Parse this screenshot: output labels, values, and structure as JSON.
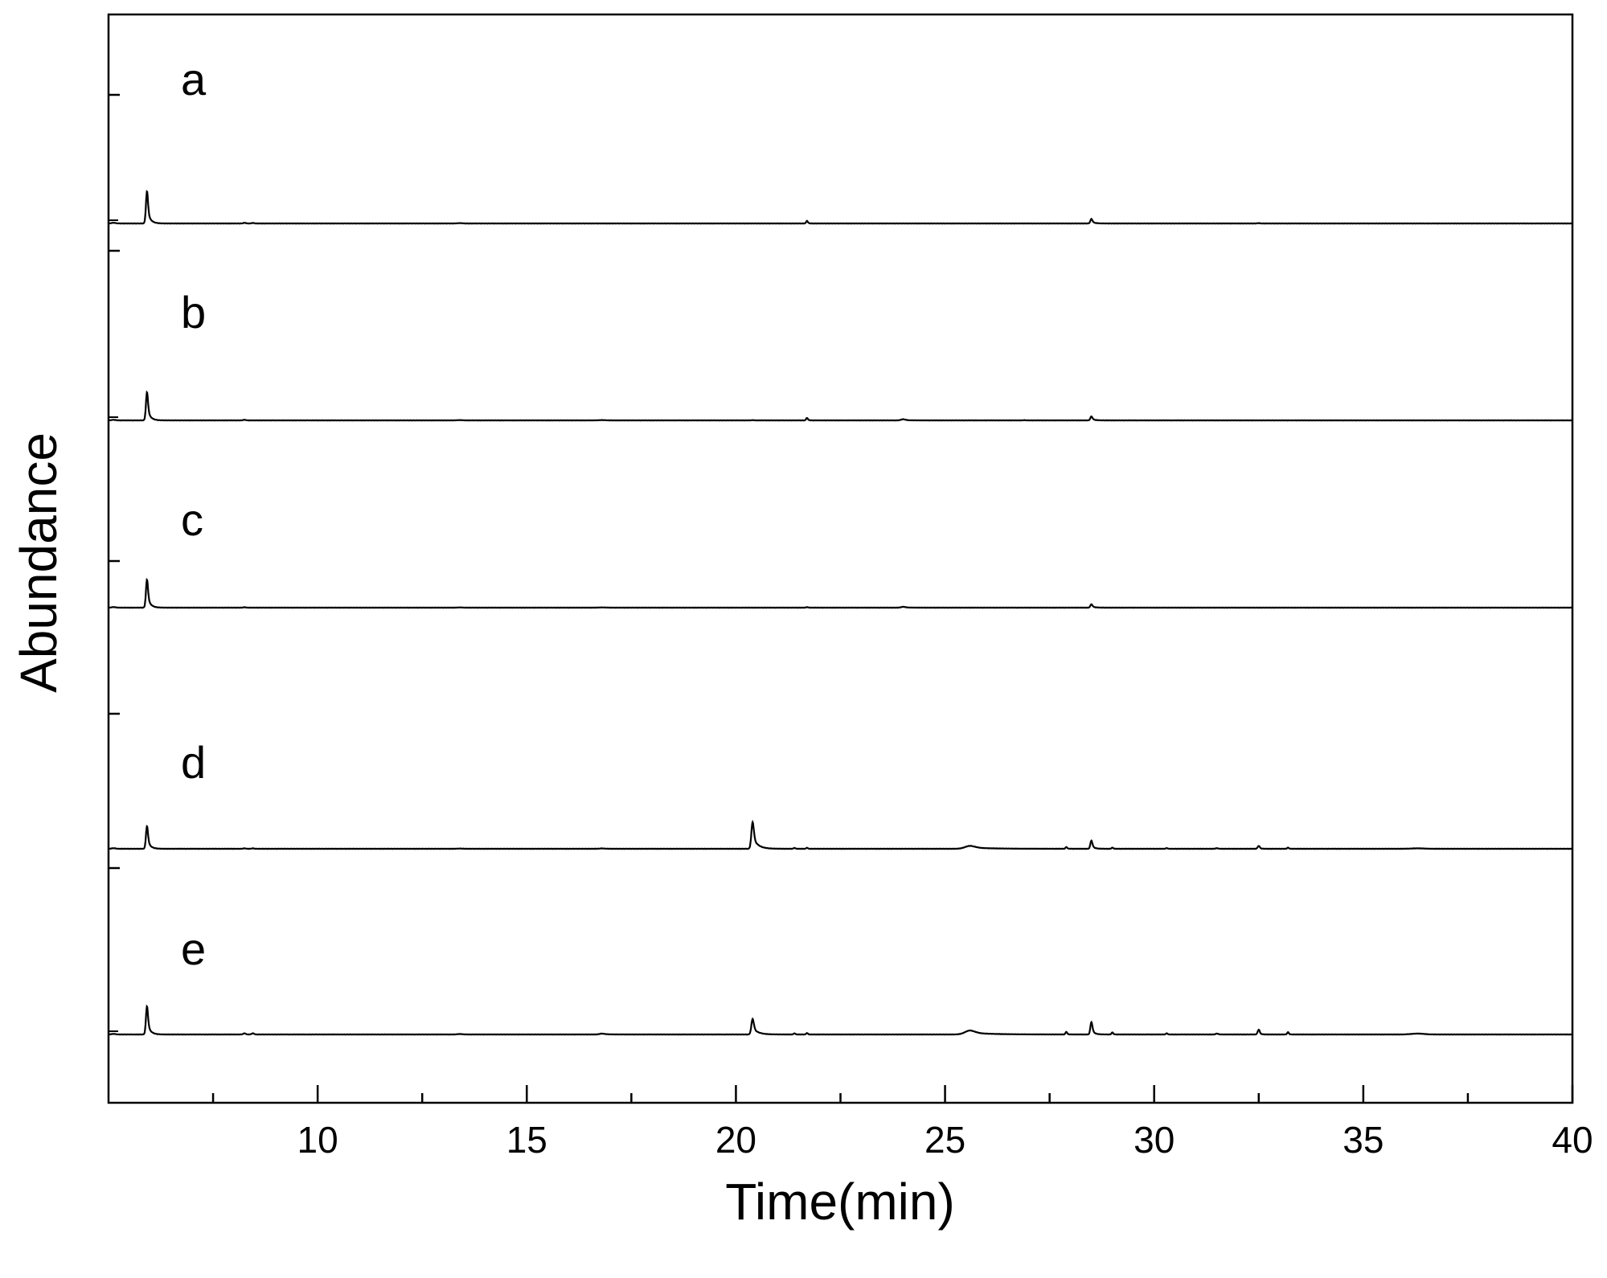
{
  "chart_data": {
    "type": "line",
    "title": "",
    "xlabel": "Time(min)",
    "ylabel": "Abundance",
    "xlim": [
      5,
      40
    ],
    "x_ticks": [
      10,
      15,
      20,
      25,
      30,
      35,
      40
    ],
    "x_minor_ticks": [
      7.5,
      12.5,
      17.5,
      22.5,
      27.5,
      32.5,
      37.5
    ],
    "y_ticks_shown": false,
    "grid": false,
    "legend": "none",
    "line_color": "#000000",
    "offset_units": "relative abundance, stacked traces",
    "series": [
      {
        "name": "a",
        "baseline": 0.05,
        "scale": 1.0,
        "peaks": [
          {
            "t": 5.12,
            "h": 0.02,
            "w": 0.05,
            "tail": 0.05
          },
          {
            "t": 5.92,
            "h": 1.0,
            "w": 0.025,
            "tail": 0.07
          },
          {
            "t": 8.25,
            "h": 0.02,
            "w": 0.03,
            "tail": 0.02
          },
          {
            "t": 8.45,
            "h": 0.015,
            "w": 0.03,
            "tail": 0.02
          },
          {
            "t": 13.4,
            "h": 0.01,
            "w": 0.06,
            "tail": 0.06
          },
          {
            "t": 21.7,
            "h": 0.08,
            "w": 0.02,
            "tail": 0.03
          },
          {
            "t": 28.5,
            "h": 0.14,
            "w": 0.025,
            "tail": 0.07
          },
          {
            "t": 32.5,
            "h": 0.01,
            "w": 0.03,
            "tail": 0.02
          }
        ]
      },
      {
        "name": "b",
        "baseline": 0.0,
        "scale": 1.0,
        "peaks": [
          {
            "t": 5.12,
            "h": 0.02,
            "w": 0.05,
            "tail": 0.05
          },
          {
            "t": 5.92,
            "h": 1.0,
            "w": 0.025,
            "tail": 0.07
          },
          {
            "t": 8.25,
            "h": 0.02,
            "w": 0.03,
            "tail": 0.02
          },
          {
            "t": 13.4,
            "h": 0.01,
            "w": 0.06,
            "tail": 0.06
          },
          {
            "t": 16.8,
            "h": 0.01,
            "w": 0.08,
            "tail": 0.08
          },
          {
            "t": 20.4,
            "h": 0.008,
            "w": 0.03,
            "tail": 0.02
          },
          {
            "t": 21.7,
            "h": 0.09,
            "w": 0.02,
            "tail": 0.03
          },
          {
            "t": 24.0,
            "h": 0.04,
            "w": 0.05,
            "tail": 0.12
          },
          {
            "t": 26.9,
            "h": 0.008,
            "w": 0.03,
            "tail": 0.02
          },
          {
            "t": 28.5,
            "h": 0.14,
            "w": 0.025,
            "tail": 0.07
          }
        ]
      },
      {
        "name": "c",
        "baseline": 0.0,
        "scale": 1.0,
        "peaks": [
          {
            "t": 5.12,
            "h": 0.02,
            "w": 0.05,
            "tail": 0.05
          },
          {
            "t": 5.92,
            "h": 1.0,
            "w": 0.025,
            "tail": 0.07
          },
          {
            "t": 8.25,
            "h": 0.015,
            "w": 0.03,
            "tail": 0.02
          },
          {
            "t": 13.4,
            "h": 0.008,
            "w": 0.06,
            "tail": 0.06
          },
          {
            "t": 16.8,
            "h": 0.008,
            "w": 0.08,
            "tail": 0.08
          },
          {
            "t": 21.7,
            "h": 0.02,
            "w": 0.02,
            "tail": 0.03
          },
          {
            "t": 24.0,
            "h": 0.03,
            "w": 0.05,
            "tail": 0.12
          },
          {
            "t": 28.5,
            "h": 0.12,
            "w": 0.025,
            "tail": 0.07
          }
        ]
      },
      {
        "name": "d",
        "baseline": 0.0,
        "scale": 1.0,
        "peaks": [
          {
            "t": 5.12,
            "h": 0.02,
            "w": 0.05,
            "tail": 0.05
          },
          {
            "t": 5.92,
            "h": 0.78,
            "w": 0.025,
            "tail": 0.07
          },
          {
            "t": 8.25,
            "h": 0.015,
            "w": 0.03,
            "tail": 0.02
          },
          {
            "t": 8.45,
            "h": 0.015,
            "w": 0.03,
            "tail": 0.02
          },
          {
            "t": 13.4,
            "h": 0.008,
            "w": 0.06,
            "tail": 0.06
          },
          {
            "t": 16.8,
            "h": 0.012,
            "w": 0.06,
            "tail": 0.1
          },
          {
            "t": 20.4,
            "h": 0.92,
            "w": 0.03,
            "tail": 0.12
          },
          {
            "t": 21.4,
            "h": 0.03,
            "w": 0.02,
            "tail": 0.02
          },
          {
            "t": 21.7,
            "h": 0.035,
            "w": 0.02,
            "tail": 0.02
          },
          {
            "t": 25.6,
            "h": 0.1,
            "w": 0.12,
            "tail": 0.5
          },
          {
            "t": 27.9,
            "h": 0.06,
            "w": 0.02,
            "tail": 0.03
          },
          {
            "t": 28.5,
            "h": 0.28,
            "w": 0.025,
            "tail": 0.06
          },
          {
            "t": 29.0,
            "h": 0.04,
            "w": 0.02,
            "tail": 0.03
          },
          {
            "t": 30.3,
            "h": 0.025,
            "w": 0.02,
            "tail": 0.02
          },
          {
            "t": 31.5,
            "h": 0.02,
            "w": 0.03,
            "tail": 0.03
          },
          {
            "t": 32.5,
            "h": 0.1,
            "w": 0.025,
            "tail": 0.04
          },
          {
            "t": 33.2,
            "h": 0.04,
            "w": 0.02,
            "tail": 0.03
          },
          {
            "t": 36.3,
            "h": 0.015,
            "w": 0.15,
            "tail": 0.15
          }
        ]
      },
      {
        "name": "e",
        "baseline": 0.0,
        "scale": 1.0,
        "peaks": [
          {
            "t": 5.12,
            "h": 0.02,
            "w": 0.05,
            "tail": 0.05
          },
          {
            "t": 5.92,
            "h": 1.0,
            "w": 0.025,
            "tail": 0.07
          },
          {
            "t": 8.25,
            "h": 0.04,
            "w": 0.03,
            "tail": 0.02
          },
          {
            "t": 8.45,
            "h": 0.04,
            "w": 0.03,
            "tail": 0.02
          },
          {
            "t": 13.4,
            "h": 0.015,
            "w": 0.06,
            "tail": 0.06
          },
          {
            "t": 16.8,
            "h": 0.03,
            "w": 0.06,
            "tail": 0.15
          },
          {
            "t": 20.4,
            "h": 0.55,
            "w": 0.03,
            "tail": 0.12
          },
          {
            "t": 21.4,
            "h": 0.04,
            "w": 0.02,
            "tail": 0.02
          },
          {
            "t": 21.7,
            "h": 0.05,
            "w": 0.02,
            "tail": 0.02
          },
          {
            "t": 25.6,
            "h": 0.14,
            "w": 0.12,
            "tail": 0.5
          },
          {
            "t": 27.9,
            "h": 0.09,
            "w": 0.02,
            "tail": 0.03
          },
          {
            "t": 28.5,
            "h": 0.44,
            "w": 0.025,
            "tail": 0.06
          },
          {
            "t": 29.0,
            "h": 0.07,
            "w": 0.02,
            "tail": 0.03
          },
          {
            "t": 30.3,
            "h": 0.04,
            "w": 0.02,
            "tail": 0.02
          },
          {
            "t": 31.5,
            "h": 0.03,
            "w": 0.03,
            "tail": 0.03
          },
          {
            "t": 32.5,
            "h": 0.17,
            "w": 0.025,
            "tail": 0.04
          },
          {
            "t": 33.2,
            "h": 0.08,
            "w": 0.02,
            "tail": 0.03
          },
          {
            "t": 36.3,
            "h": 0.03,
            "w": 0.15,
            "tail": 0.15
          }
        ]
      }
    ]
  }
}
